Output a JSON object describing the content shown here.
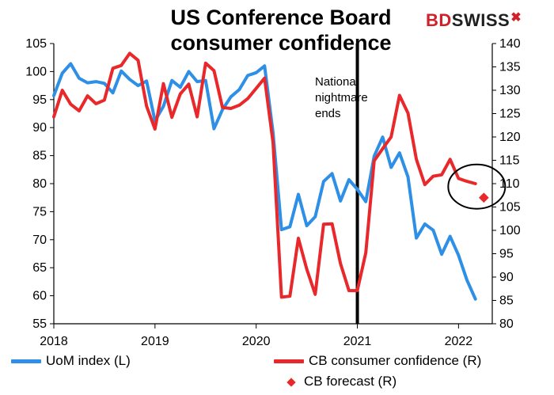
{
  "title": "US Conference Board consumer confidence",
  "brand": "BDSWISS",
  "colors": {
    "uom": "#2e8fe6",
    "cb": "#e8282b",
    "forecast": "#e8282b",
    "event_line": "#000000"
  },
  "annotation": [
    "National",
    "nightmare",
    "ends"
  ],
  "legend": [
    {
      "label": "UoM index (L)",
      "shape": "line",
      "color": "#2e8fe6"
    },
    {
      "label": "CB consumer confidence (R)",
      "shape": "line",
      "color": "#e8282b"
    },
    {
      "label": "CB forecast (R)",
      "shape": "diamond",
      "color": "#e8282b"
    }
  ],
  "chart_data": {
    "type": "line",
    "title": "US Conference Board consumer confidence",
    "x_tick_labels": [
      "2018",
      "2019",
      "2020",
      "2021",
      "2022"
    ],
    "x_range": [
      "2018-01",
      "2022-05"
    ],
    "y_left": {
      "label": "",
      "ylim": [
        55,
        105
      ],
      "ticks": [
        55,
        60,
        65,
        70,
        75,
        80,
        85,
        90,
        95,
        100,
        105
      ]
    },
    "y_right": {
      "label": "",
      "ylim": [
        80,
        140
      ],
      "ticks": [
        80,
        85,
        90,
        95,
        100,
        105,
        110,
        115,
        120,
        125,
        130,
        135,
        140
      ]
    },
    "event_marker": {
      "x": "2021-01",
      "label": "National nightmare ends"
    },
    "series": [
      {
        "name": "UoM index (L)",
        "axis": "left",
        "x": [
          "2018-01",
          "2018-02",
          "2018-03",
          "2018-04",
          "2018-05",
          "2018-06",
          "2018-07",
          "2018-08",
          "2018-09",
          "2018-10",
          "2018-11",
          "2018-12",
          "2019-01",
          "2019-02",
          "2019-03",
          "2019-04",
          "2019-05",
          "2019-06",
          "2019-07",
          "2019-08",
          "2019-09",
          "2019-10",
          "2019-11",
          "2019-12",
          "2020-01",
          "2020-02",
          "2020-03",
          "2020-04",
          "2020-05",
          "2020-06",
          "2020-07",
          "2020-08",
          "2020-09",
          "2020-10",
          "2020-11",
          "2020-12",
          "2021-01",
          "2021-02",
          "2021-03",
          "2021-04",
          "2021-05",
          "2021-06",
          "2021-07",
          "2021-08",
          "2021-09",
          "2021-10",
          "2021-11",
          "2021-12",
          "2022-01",
          "2022-02",
          "2022-03"
        ],
        "values": [
          95.7,
          99.7,
          101.4,
          98.8,
          98.0,
          98.2,
          97.9,
          96.2,
          100.1,
          98.6,
          97.5,
          98.3,
          91.2,
          93.8,
          98.4,
          97.2,
          100.0,
          98.2,
          98.4,
          89.8,
          93.2,
          95.5,
          96.8,
          99.3,
          99.8,
          101.0,
          89.1,
          71.8,
          72.3,
          78.1,
          72.5,
          74.1,
          80.4,
          81.8,
          76.9,
          80.7,
          79.0,
          76.8,
          84.9,
          88.3,
          82.9,
          85.5,
          81.2,
          70.3,
          72.8,
          71.7,
          67.4,
          70.6,
          67.2,
          62.8,
          59.4
        ]
      },
      {
        "name": "CB consumer confidence (R)",
        "axis": "right",
        "x": [
          "2018-01",
          "2018-02",
          "2018-03",
          "2018-04",
          "2018-05",
          "2018-06",
          "2018-07",
          "2018-08",
          "2018-09",
          "2018-10",
          "2018-11",
          "2018-12",
          "2019-01",
          "2019-02",
          "2019-03",
          "2019-04",
          "2019-05",
          "2019-06",
          "2019-07",
          "2019-08",
          "2019-09",
          "2019-10",
          "2019-11",
          "2019-12",
          "2020-01",
          "2020-02",
          "2020-03",
          "2020-04",
          "2020-05",
          "2020-06",
          "2020-07",
          "2020-08",
          "2020-09",
          "2020-10",
          "2020-11",
          "2020-12",
          "2021-01",
          "2021-02",
          "2021-03",
          "2021-04",
          "2021-05",
          "2021-06",
          "2021-07",
          "2021-08",
          "2021-09",
          "2021-10",
          "2021-11",
          "2021-12",
          "2022-01",
          "2022-02",
          "2022-03"
        ],
        "values": [
          124.3,
          130.0,
          127.0,
          125.6,
          128.8,
          127.1,
          127.9,
          134.7,
          135.3,
          137.9,
          136.4,
          126.6,
          121.7,
          131.4,
          124.2,
          129.2,
          131.3,
          124.3,
          135.8,
          134.2,
          126.3,
          126.1,
          126.8,
          128.2,
          130.4,
          132.6,
          118.8,
          85.7,
          85.9,
          98.3,
          91.7,
          86.3,
          101.3,
          101.4,
          92.9,
          87.1,
          87.1,
          95.2,
          114.9,
          117.5,
          120.0,
          128.9,
          125.1,
          115.2,
          109.8,
          111.6,
          111.9,
          115.2,
          111.1,
          110.5,
          110.0
        ]
      },
      {
        "name": "CB forecast (R)",
        "axis": "right",
        "type": "scatter",
        "x": [
          "2022-04"
        ],
        "values": [
          107.0
        ]
      }
    ]
  }
}
